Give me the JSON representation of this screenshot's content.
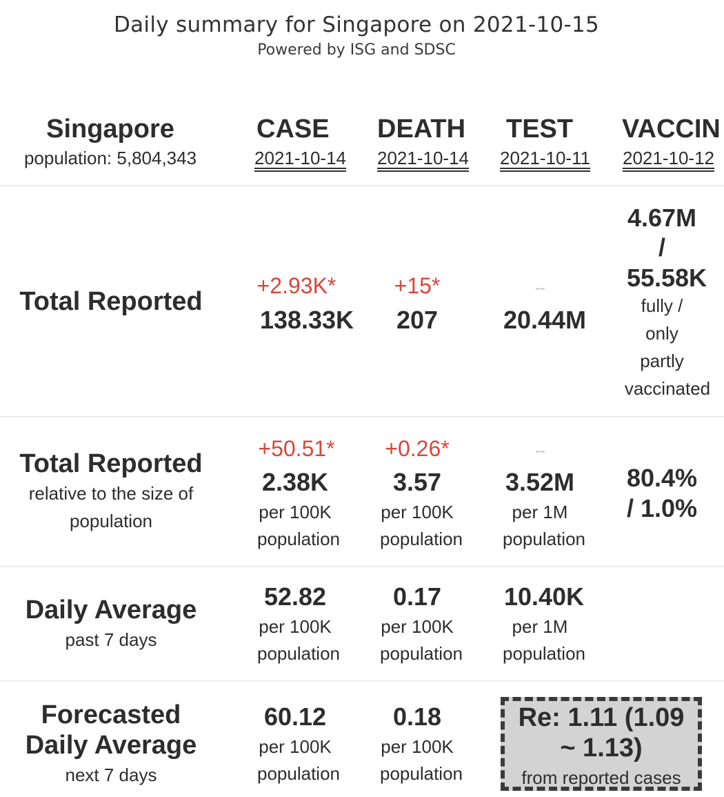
{
  "header": {
    "title": "Daily summary for Singapore on 2021-10-15",
    "subtitle": "Powered by ISG and SDSC"
  },
  "region": {
    "name": "Singapore",
    "population": "population: 5,804,343"
  },
  "columns": {
    "case": {
      "label": "CASE",
      "date": "2021-10-14"
    },
    "death": {
      "label": "DEATH",
      "date": "2021-10-14"
    },
    "test": {
      "label": "TEST",
      "date": "2021-10-11"
    },
    "vaccine": {
      "label": "VACCIN",
      "date": "2021-10-12"
    }
  },
  "rows": {
    "total": {
      "label": "Total Reported",
      "case_change": "+2.93K*",
      "case_value": "138.33K",
      "death_change": "+15*",
      "death_value": "207",
      "test_change": "--",
      "test_value": "20.44M",
      "vaccine_fully": "4.67M",
      "vaccine_sep": "/",
      "vaccine_partly": "55.58K",
      "vaccine_note_1": "fully /",
      "vaccine_note_2": "only",
      "vaccine_note_3": "partly",
      "vaccine_note_4": "vaccinated"
    },
    "relative": {
      "label": "Total Reported",
      "sublabel_1": "relative to the size of",
      "sublabel_2": "population",
      "case_change": "+50.51*",
      "case_value": "2.38K",
      "case_unit": "per 100K",
      "case_unit2": "population",
      "death_change": "+0.26*",
      "death_value": "3.57",
      "death_unit": "per 100K",
      "death_unit2": "population",
      "test_change": "--",
      "test_value": "3.52M",
      "test_unit": "per 1M",
      "test_unit2": "population",
      "vaccine_line1": "80.4%",
      "vaccine_line2": "/ 1.0%"
    },
    "daily": {
      "label": "Daily Average",
      "sublabel": "past 7 days",
      "case_value": "52.82",
      "case_unit": "per 100K",
      "case_unit2": "population",
      "death_value": "0.17",
      "death_unit": "per 100K",
      "death_unit2": "population",
      "test_value": "10.40K",
      "test_unit": "per 1M",
      "test_unit2": "population"
    },
    "forecast": {
      "label_1": "Forecasted",
      "label_2": "Daily Average",
      "sublabel": "next 7 days",
      "case_value": "60.12",
      "case_unit": "per 100K",
      "case_unit2": "population",
      "death_value": "0.18",
      "death_unit": "per 100K",
      "death_unit2": "population",
      "re_line1": "Re: 1.11 (1.09",
      "re_line2": "~ 1.13)",
      "re_sub": "from reported cases"
    }
  },
  "colors": {
    "increase": "#d9453a",
    "placeholder": "#b7c3d6",
    "re_box": "#d3d3d3"
  }
}
